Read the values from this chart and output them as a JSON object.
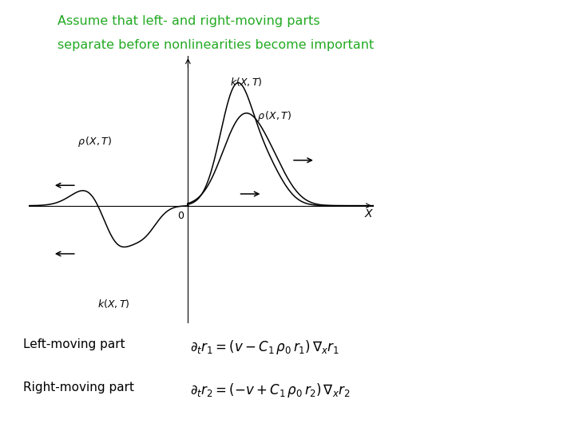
{
  "title_line1": "Assume that left- and right-moving parts",
  "title_line2": "separate before nonlinearities become important",
  "title_color": "#22aa22",
  "title_fontsize": 11.5,
  "bg_color": "#ffffff",
  "left_moving_label": "Left-moving part",
  "right_moving_label": "Right-moving part",
  "eq1": "$\\partial_t r_1 = (v - C_1\\,\\rho_0\\,r_1)\\,\\nabla_x r_1$",
  "eq2": "$\\partial_t r_2 = (-v + C_1\\,\\rho_0\\,r_2)\\,\\nabla_x r_2$",
  "label_fontsize": 11,
  "eq_fontsize": 12
}
